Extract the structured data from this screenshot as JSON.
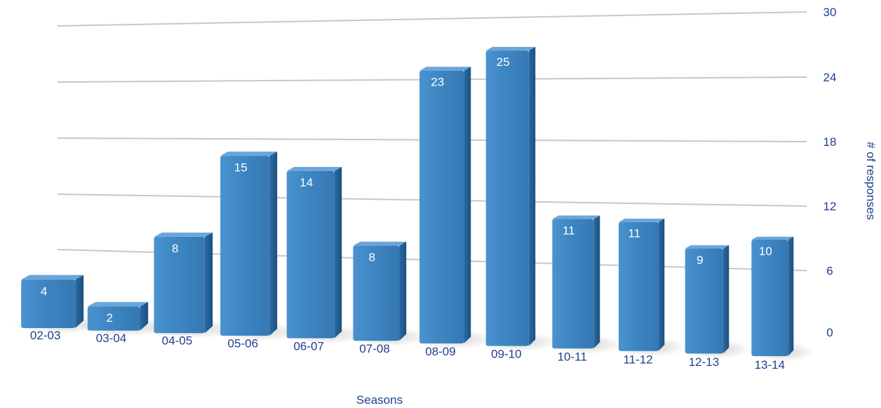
{
  "chart_data": {
    "type": "bar",
    "categories": [
      "02-03",
      "03-04",
      "04-05",
      "05-06",
      "06-07",
      "07-08",
      "08-09",
      "09-10",
      "10-11",
      "11-12",
      "12-13",
      "13-14"
    ],
    "values": [
      4,
      2,
      8,
      15,
      14,
      8,
      23,
      25,
      11,
      11,
      9,
      10
    ],
    "xlabel": "Seasons",
    "ylabel": "# of responses",
    "ylim": [
      0,
      30
    ],
    "yticks": [
      0,
      6,
      12,
      18,
      24,
      30
    ],
    "grid": true,
    "style": "3d-perspective",
    "colors": {
      "bar": "#3f88c5",
      "bar_side": "#235e94",
      "bar_top": "#6aa6d9",
      "text": "#1f3f8f",
      "grid": "#c8c8c8"
    }
  }
}
